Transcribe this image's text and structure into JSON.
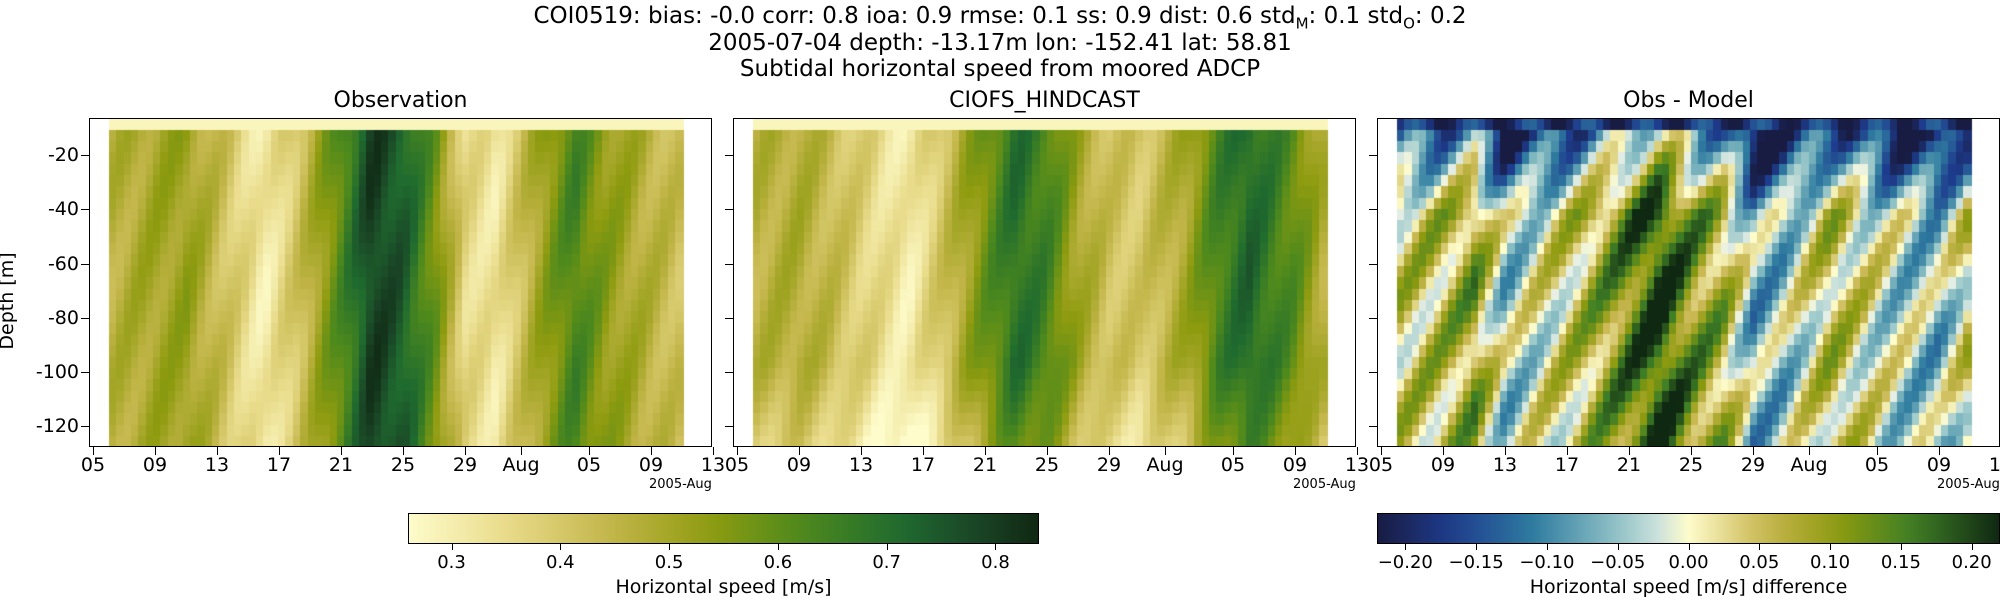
{
  "figure": {
    "title_line1": "COI0519: bias: -0.0  corr: 0.8  ioa: 0.9  rmse: 0.1  ss: 0.9  dist: 0.6  std",
    "title_sub_m": "M",
    "title_mid": ": 0.1  std",
    "title_sub_o": "O",
    "title_end": ": 0.2",
    "title_line2": "2005-07-04 depth: -13.17m lon: -152.41 lat: 58.81",
    "title_line3": "Subtidal horizontal speed from moored ADCP"
  },
  "chart_data": [
    {
      "type": "heatmap",
      "title": "Observation",
      "ylabel": "Depth [m]",
      "xlabel": "",
      "x_tick_labels": [
        "05",
        "09",
        "13",
        "17",
        "21",
        "25",
        "29",
        "Aug",
        "05",
        "09",
        "13"
      ],
      "x_offset_label": "2005-Aug",
      "y_ticks": [
        -20,
        -40,
        -60,
        -80,
        -100,
        -120
      ],
      "ylim": [
        -131,
        -11
      ],
      "time_range": [
        "2005-07-06",
        "2005-08-12"
      ],
      "colormap": "speed",
      "vrange": [
        0.26,
        0.84
      ],
      "value_profile_by_date": [
        {
          "date": "07-06",
          "value": 0.46
        },
        {
          "date": "07-09",
          "value": 0.5
        },
        {
          "date": "07-11",
          "value": 0.52
        },
        {
          "date": "07-13",
          "value": 0.44
        },
        {
          "date": "07-16",
          "value": 0.3
        },
        {
          "date": "07-18",
          "value": 0.4
        },
        {
          "date": "07-21",
          "value": 0.62
        },
        {
          "date": "07-23",
          "value": 0.8
        },
        {
          "date": "07-25",
          "value": 0.74
        },
        {
          "date": "07-27",
          "value": 0.58
        },
        {
          "date": "07-29",
          "value": 0.36
        },
        {
          "date": "07-31",
          "value": 0.32
        },
        {
          "date": "08-03",
          "value": 0.52
        },
        {
          "date": "08-05",
          "value": 0.64
        },
        {
          "date": "08-07",
          "value": 0.54
        },
        {
          "date": "08-10",
          "value": 0.46
        },
        {
          "date": "08-12",
          "value": 0.42
        }
      ]
    },
    {
      "type": "heatmap",
      "title": "CIOFS_HINDCAST",
      "xlabel": "",
      "x_tick_labels": [
        "05",
        "09",
        "13",
        "17",
        "21",
        "25",
        "29",
        "Aug",
        "05",
        "09",
        "13"
      ],
      "x_offset_label": "2005-Aug",
      "ylim": [
        -131,
        -11
      ],
      "time_range": [
        "2005-07-06",
        "2005-08-12"
      ],
      "colormap": "speed",
      "vrange": [
        0.26,
        0.84
      ],
      "value_profile_by_date": [
        {
          "date": "07-06",
          "value": 0.46
        },
        {
          "date": "07-09",
          "value": 0.48
        },
        {
          "date": "07-11",
          "value": 0.44
        },
        {
          "date": "07-13",
          "value": 0.38
        },
        {
          "date": "07-16",
          "value": 0.3
        },
        {
          "date": "07-18",
          "value": 0.4
        },
        {
          "date": "07-21",
          "value": 0.58
        },
        {
          "date": "07-23",
          "value": 0.7
        },
        {
          "date": "07-25",
          "value": 0.64
        },
        {
          "date": "07-27",
          "value": 0.5
        },
        {
          "date": "07-29",
          "value": 0.42
        },
        {
          "date": "07-31",
          "value": 0.4
        },
        {
          "date": "08-03",
          "value": 0.5
        },
        {
          "date": "08-05",
          "value": 0.64
        },
        {
          "date": "08-07",
          "value": 0.72
        },
        {
          "date": "08-10",
          "value": 0.6
        },
        {
          "date": "08-12",
          "value": 0.46
        }
      ]
    },
    {
      "type": "heatmap",
      "title": "Obs - Model",
      "xlabel": "",
      "x_tick_labels": [
        "05",
        "09",
        "13",
        "17",
        "21",
        "25",
        "29",
        "Aug",
        "05",
        "09",
        "13"
      ],
      "x_offset_label": "2005-Aug",
      "ylim": [
        -131,
        -11
      ],
      "time_range": [
        "2005-07-06",
        "2005-08-12"
      ],
      "colormap": "difference",
      "vrange": [
        -0.22,
        0.22
      ],
      "value_profile_by_date": [
        {
          "date": "07-06",
          "value": 0.04
        },
        {
          "date": "07-09",
          "value": 0.06
        },
        {
          "date": "07-11",
          "value": 0.1
        },
        {
          "date": "07-13",
          "value": -0.04
        },
        {
          "date": "07-16",
          "value": 0.02
        },
        {
          "date": "07-18",
          "value": 0.06
        },
        {
          "date": "07-21",
          "value": 0.14
        },
        {
          "date": "07-23",
          "value": 0.2
        },
        {
          "date": "07-25",
          "value": 0.12
        },
        {
          "date": "07-27",
          "value": 0.08
        },
        {
          "date": "07-29",
          "value": -0.06
        },
        {
          "date": "07-31",
          "value": -0.04
        },
        {
          "date": "08-03",
          "value": 0.06
        },
        {
          "date": "08-05",
          "value": 0.02
        },
        {
          "date": "08-07",
          "value": -0.02
        },
        {
          "date": "08-10",
          "value": -0.05
        },
        {
          "date": "08-12",
          "value": 0.04
        }
      ]
    }
  ],
  "colorbars": [
    {
      "label": "Horizontal speed [m/s]",
      "ticks": [
        "0.3",
        "0.4",
        "0.5",
        "0.6",
        "0.7",
        "0.8"
      ],
      "tick_values": [
        0.3,
        0.4,
        0.5,
        0.6,
        0.7,
        0.8
      ],
      "vrange": [
        0.26,
        0.84
      ],
      "colormap": "speed"
    },
    {
      "label": "Horizontal speed [m/s] difference",
      "ticks": [
        "−0.20",
        "−0.15",
        "−0.10",
        "−0.05",
        "0.00",
        "0.05",
        "0.10",
        "0.15",
        "0.20"
      ],
      "tick_values": [
        -0.2,
        -0.15,
        -0.1,
        -0.05,
        0.0,
        0.05,
        0.1,
        0.15,
        0.2
      ],
      "vrange": [
        -0.22,
        0.22
      ],
      "colormap": "difference"
    }
  ],
  "colors": {
    "speed_low": "#fefccb",
    "speed_mid": "#8e9b0f",
    "speed_high": "#0f2812",
    "diff_neg": "#181c43",
    "diff_zero": "#fefccb",
    "diff_pos": "#0f2812"
  }
}
